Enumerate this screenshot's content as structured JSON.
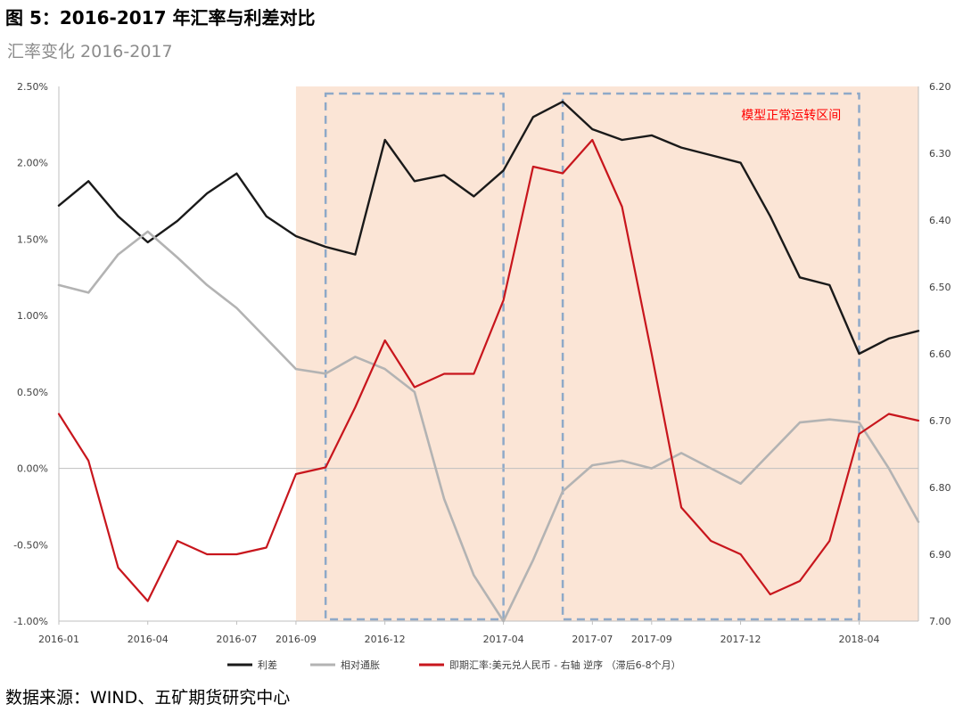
{
  "figure_title": "图 5：2016-2017 年汇率与利差对比",
  "subtitle": "汇率变化 2016-2017",
  "source": "数据来源：WIND、五矿期货研究中心",
  "colors": {
    "spread": "#1a1a1a",
    "inflation": "#b3b3b3",
    "fx": "#c8161d",
    "shade": "#fbe5d6",
    "box": "#8ea9c8",
    "annotation": "#ff0000"
  },
  "chart_data": {
    "type": "line",
    "title": "汇率变化 2016-2017",
    "xlabel": "",
    "x_ticks": [
      "2016-01",
      "2016-04",
      "2016-07",
      "2016-09",
      "2016-12",
      "2017-04",
      "2017-07",
      "2017-09",
      "2017-12",
      "2018-04"
    ],
    "x_range": [
      "2016-01",
      "2018-06"
    ],
    "y_left": {
      "range": [
        -1.0,
        2.5
      ],
      "ticks": [
        "-1.00%",
        "-0.50%",
        "0.00%",
        "0.50%",
        "1.00%",
        "1.50%",
        "2.00%",
        "2.50%"
      ],
      "tick_values": [
        -1.0,
        -0.5,
        0.0,
        0.5,
        1.0,
        1.5,
        2.0,
        2.5
      ]
    },
    "y_right": {
      "range": [
        6.2,
        7.0
      ],
      "reversed": true,
      "ticks": [
        "6.20",
        "6.30",
        "6.40",
        "6.50",
        "6.60",
        "6.70",
        "6.80",
        "6.90",
        "7.00"
      ],
      "tick_values": [
        6.2,
        6.3,
        6.4,
        6.5,
        6.6,
        6.7,
        6.8,
        6.9,
        7.0
      ]
    },
    "shaded_region": {
      "x_start": "2016-09",
      "x_end": "2018-06"
    },
    "dashed_boxes": [
      {
        "x_start": "2016-10",
        "x_end": "2017-04"
      },
      {
        "x_start": "2017-06",
        "x_end": "2018-04"
      }
    ],
    "annotation": "模型正常运转区间",
    "legend_position": "bottom",
    "series": [
      {
        "name": "利差",
        "axis": "left",
        "x": [
          "2016-01",
          "2016-02",
          "2016-03",
          "2016-04",
          "2016-05",
          "2016-06",
          "2016-07",
          "2016-08",
          "2016-09",
          "2016-10",
          "2016-11",
          "2016-12",
          "2017-01",
          "2017-02",
          "2017-03",
          "2017-04",
          "2017-05",
          "2017-06",
          "2017-07",
          "2017-08",
          "2017-09",
          "2017-10",
          "2017-11",
          "2017-12",
          "2018-01",
          "2018-02",
          "2018-03",
          "2018-04",
          "2018-05",
          "2018-06"
        ],
        "values": [
          1.72,
          1.88,
          1.65,
          1.48,
          1.62,
          1.8,
          1.93,
          1.65,
          1.52,
          1.45,
          1.4,
          2.15,
          1.88,
          1.92,
          1.78,
          1.95,
          2.3,
          2.4,
          2.22,
          2.15,
          2.18,
          2.1,
          2.05,
          2.0,
          1.65,
          1.25,
          1.2,
          0.75,
          0.85,
          0.9
        ]
      },
      {
        "name": "相对通胀",
        "axis": "left",
        "x": [
          "2016-01",
          "2016-02",
          "2016-03",
          "2016-04",
          "2016-05",
          "2016-06",
          "2016-07",
          "2016-08",
          "2016-09",
          "2016-10",
          "2016-11",
          "2016-12",
          "2017-01",
          "2017-02",
          "2017-03",
          "2017-04",
          "2017-05",
          "2017-06",
          "2017-07",
          "2017-08",
          "2017-09",
          "2017-10",
          "2017-11",
          "2017-12",
          "2018-01",
          "2018-02",
          "2018-03",
          "2018-04",
          "2018-05",
          "2018-06"
        ],
        "values": [
          1.2,
          1.15,
          1.4,
          1.55,
          1.38,
          1.2,
          1.05,
          0.85,
          0.65,
          0.62,
          0.73,
          0.65,
          0.5,
          -0.2,
          -0.7,
          -1.0,
          -0.6,
          -0.15,
          0.02,
          0.05,
          0.0,
          0.1,
          0.0,
          -0.1,
          0.1,
          0.3,
          0.32,
          0.3,
          0.0,
          -0.35
        ]
      },
      {
        "name": "即期汇率:美元兑人民币 - 右轴 逆序 （滞后6-8个月）",
        "axis": "right",
        "x": [
          "2016-01",
          "2016-02",
          "2016-03",
          "2016-04",
          "2016-05",
          "2016-06",
          "2016-07",
          "2016-08",
          "2016-09",
          "2016-10",
          "2016-11",
          "2016-12",
          "2017-01",
          "2017-02",
          "2017-03",
          "2017-04",
          "2017-05",
          "2017-06",
          "2017-07",
          "2017-08",
          "2017-09",
          "2017-10",
          "2017-11",
          "2017-12",
          "2018-01",
          "2018-02",
          "2018-03",
          "2018-04",
          "2018-05",
          "2018-06"
        ],
        "values": [
          6.69,
          6.76,
          6.92,
          6.97,
          6.88,
          6.9,
          6.9,
          6.89,
          6.78,
          6.77,
          6.68,
          6.58,
          6.65,
          6.63,
          6.63,
          6.52,
          6.32,
          6.33,
          6.28,
          6.38,
          6.6,
          6.83,
          6.88,
          6.9,
          6.96,
          6.94,
          6.88,
          6.72,
          6.69,
          6.7
        ]
      }
    ]
  }
}
